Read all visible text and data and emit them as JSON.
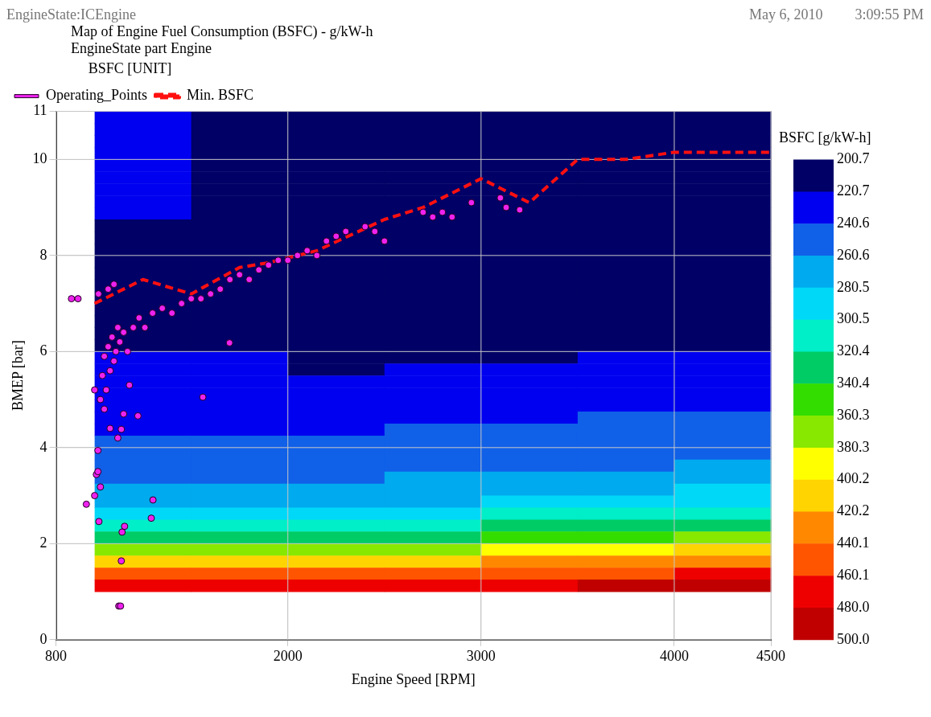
{
  "chart_data": {
    "type": "heatmap",
    "title": "Map of Engine Fuel Consumption (BSFC) - g/kW-h",
    "subtitle": "EngineState part Engine",
    "annotations": [
      "EngineState:ICEngine",
      "May 6, 2010",
      "3:09:55 PM"
    ],
    "xlabel": "Engine Speed [RPM]",
    "ylabel": "BMEP [bar]",
    "clabel": "BSFC [g/kW-h]",
    "legend_title": "BSFC [UNIT]",
    "legend": "top",
    "grid": true,
    "xlim": [
      800,
      4500
    ],
    "xticks": [
      800,
      2000,
      3000,
      4000,
      4500
    ],
    "ylim": [
      0,
      11
    ],
    "yticks": [
      0,
      2,
      4,
      6,
      8,
      10,
      11
    ],
    "clim": [
      500,
      200.7
    ],
    "cticks": [
      200.7,
      220.7,
      240.6,
      260.6,
      280.5,
      300.5,
      320.4,
      340.4,
      360.3,
      380.3,
      400.2,
      420.2,
      440.1,
      460.1,
      {
        "value": 480,
        "label": "480.0"
      },
      {
        "value": 500,
        "label": "500.0"
      }
    ],
    "colors": [
      "#000066",
      "#0000f0",
      "#1060e8",
      "#00aaee",
      "#00d8f8",
      "#00eec8",
      "#00cc66",
      "#33dd00",
      "#88e800",
      "#ffff00",
      "#ffd400",
      "#ff8800",
      "#ff5500",
      "#ee0000",
      "#c00000"
    ],
    "x": [
      1250,
      1750,
      2250,
      2750,
      3250,
      3750,
      4250
    ],
    "y": [
      10.875,
      10.625,
      10.375,
      10.125,
      9.875,
      9.625,
      9.375,
      9.125,
      8.875,
      8.625,
      8.375,
      8.125,
      7.875,
      7.625,
      7.375,
      7.125,
      6.875,
      6.625,
      6.375,
      6.125,
      5.875,
      5.625,
      5.375,
      5.125,
      4.875,
      4.625,
      4.375,
      4.125,
      3.875,
      3.625,
      3.375,
      3.125,
      2.875,
      2.625,
      2.375,
      2.125,
      1.875,
      1.625,
      1.375,
      1.125
    ],
    "cells": [
      [
        230,
        210,
        210,
        210,
        210,
        210,
        210
      ],
      [
        230,
        210,
        210,
        210,
        210,
        210,
        210
      ],
      [
        230,
        210,
        210,
        210,
        210,
        210,
        210
      ],
      [
        230,
        210,
        210,
        210,
        210,
        210,
        210
      ],
      [
        230,
        210,
        210,
        210,
        210,
        210,
        210
      ],
      [
        230,
        210,
        210,
        210,
        210,
        210,
        210
      ],
      [
        230,
        210,
        210,
        210,
        210,
        210,
        210
      ],
      [
        230,
        210,
        210,
        210,
        210,
        210,
        210
      ],
      [
        230,
        210,
        210,
        210,
        210,
        210,
        210
      ],
      [
        210,
        210,
        210,
        210,
        210,
        210,
        210
      ],
      [
        210,
        210,
        210,
        210,
        210,
        210,
        210
      ],
      [
        210,
        210,
        210,
        210,
        210,
        210,
        210
      ],
      [
        210,
        210,
        210,
        210,
        210,
        210,
        210
      ],
      [
        210,
        210,
        210,
        210,
        210,
        210,
        210
      ],
      [
        210,
        210,
        210,
        210,
        210,
        210,
        210
      ],
      [
        210,
        210,
        210,
        210,
        210,
        210,
        210
      ],
      [
        210,
        210,
        210,
        210,
        210,
        210,
        210
      ],
      [
        210,
        210,
        210,
        210,
        210,
        210,
        210
      ],
      [
        210,
        210,
        210,
        210,
        210,
        210,
        210
      ],
      [
        210,
        210,
        210,
        210,
        210,
        210,
        210
      ],
      [
        230,
        230,
        210,
        210,
        210,
        230,
        230
      ],
      [
        230,
        230,
        210,
        230,
        230,
        230,
        230
      ],
      [
        230,
        230,
        230,
        230,
        230,
        230,
        230
      ],
      [
        230,
        230,
        230,
        230,
        230,
        230,
        230
      ],
      [
        230,
        230,
        230,
        230,
        230,
        230,
        230
      ],
      [
        230,
        230,
        230,
        230,
        230,
        250,
        250
      ],
      [
        230,
        230,
        230,
        250,
        250,
        250,
        250
      ],
      [
        250,
        250,
        250,
        250,
        250,
        250,
        250
      ],
      [
        250,
        250,
        250,
        250,
        250,
        250,
        250
      ],
      [
        250,
        250,
        250,
        250,
        250,
        250,
        270
      ],
      [
        250,
        250,
        250,
        270,
        270,
        270,
        270
      ],
      [
        270,
        270,
        270,
        270,
        270,
        270,
        290
      ],
      [
        270,
        270,
        270,
        270,
        290,
        290,
        290
      ],
      [
        290,
        290,
        290,
        290,
        310,
        310,
        310
      ],
      [
        310,
        310,
        310,
        310,
        330,
        330,
        330
      ],
      [
        330,
        330,
        330,
        330,
        350,
        350,
        370
      ],
      [
        370,
        370,
        370,
        370,
        390,
        390,
        410
      ],
      [
        410,
        410,
        410,
        410,
        430,
        430,
        430
      ],
      [
        450,
        450,
        450,
        450,
        450,
        450,
        470
      ],
      [
        470,
        470,
        470,
        470,
        470,
        490,
        490
      ]
    ],
    "series": [
      {
        "name": "Operating_Points",
        "type": "scatter",
        "color": "#ee22ee",
        "marker": "circle",
        "x": [
          880,
          914,
          957,
          1000,
          1009,
          1017,
          1030,
          1022,
          1017,
          1155,
          1142,
          1138,
          1125,
          1134,
          1302,
          1293,
          1138,
          1030,
          1040,
          1050,
          1060,
          1070,
          1080,
          1090,
          1100,
          1110,
          1120,
          1130,
          1150,
          1170,
          1200,
          1230,
          1260,
          1300,
          1350,
          1400,
          1450,
          1500,
          1550,
          1600,
          1650,
          1700,
          1750,
          1800,
          1850,
          1900,
          1950,
          2000,
          2050,
          2100,
          2150,
          2200,
          2250,
          2300,
          2400,
          2450,
          2500,
          2700,
          2750,
          2800,
          2850,
          2950,
          3100,
          3130,
          3200,
          1020,
          1070,
          1100,
          1698,
          1560,
          1224,
          1120,
          1050,
          1080,
          1150,
          1180,
          1000
        ],
        "values": [
          7.1,
          7.1,
          2.82,
          3.0,
          3.44,
          3.5,
          3.18,
          2.46,
          3.94,
          2.36,
          2.24,
          1.64,
          0.7,
          0.7,
          2.91,
          2.53,
          4.38,
          5.0,
          5.5,
          5.9,
          5.2,
          6.1,
          5.6,
          6.3,
          5.8,
          6.0,
          6.5,
          6.2,
          6.4,
          6.0,
          6.5,
          6.7,
          6.5,
          6.8,
          6.9,
          6.8,
          7.0,
          7.1,
          7.1,
          7.2,
          7.3,
          7.5,
          7.6,
          7.5,
          7.7,
          7.8,
          7.9,
          7.9,
          8.0,
          8.1,
          8.0,
          8.3,
          8.4,
          8.5,
          8.6,
          8.5,
          8.3,
          8.9,
          8.8,
          8.9,
          8.8,
          9.1,
          9.2,
          9.0,
          8.95,
          7.2,
          7.3,
          7.4,
          6.18,
          5.05,
          4.66,
          4.2,
          4.8,
          4.4,
          4.7,
          5.3,
          5.2
        ]
      },
      {
        "name": "Min. BSFC",
        "type": "line",
        "color": "#ff1010",
        "line_style": "dashed",
        "marker": "none",
        "x": [
          1000,
          1250,
          1500,
          1750,
          1900,
          2150,
          2500,
          2700,
          3000,
          3250,
          3500,
          3750,
          4000,
          4500
        ],
        "values": [
          7.0,
          7.5,
          7.2,
          7.75,
          7.85,
          8.1,
          8.75,
          9.0,
          9.6,
          9.1,
          10.0,
          10.0,
          10.15,
          10.15
        ]
      }
    ]
  }
}
